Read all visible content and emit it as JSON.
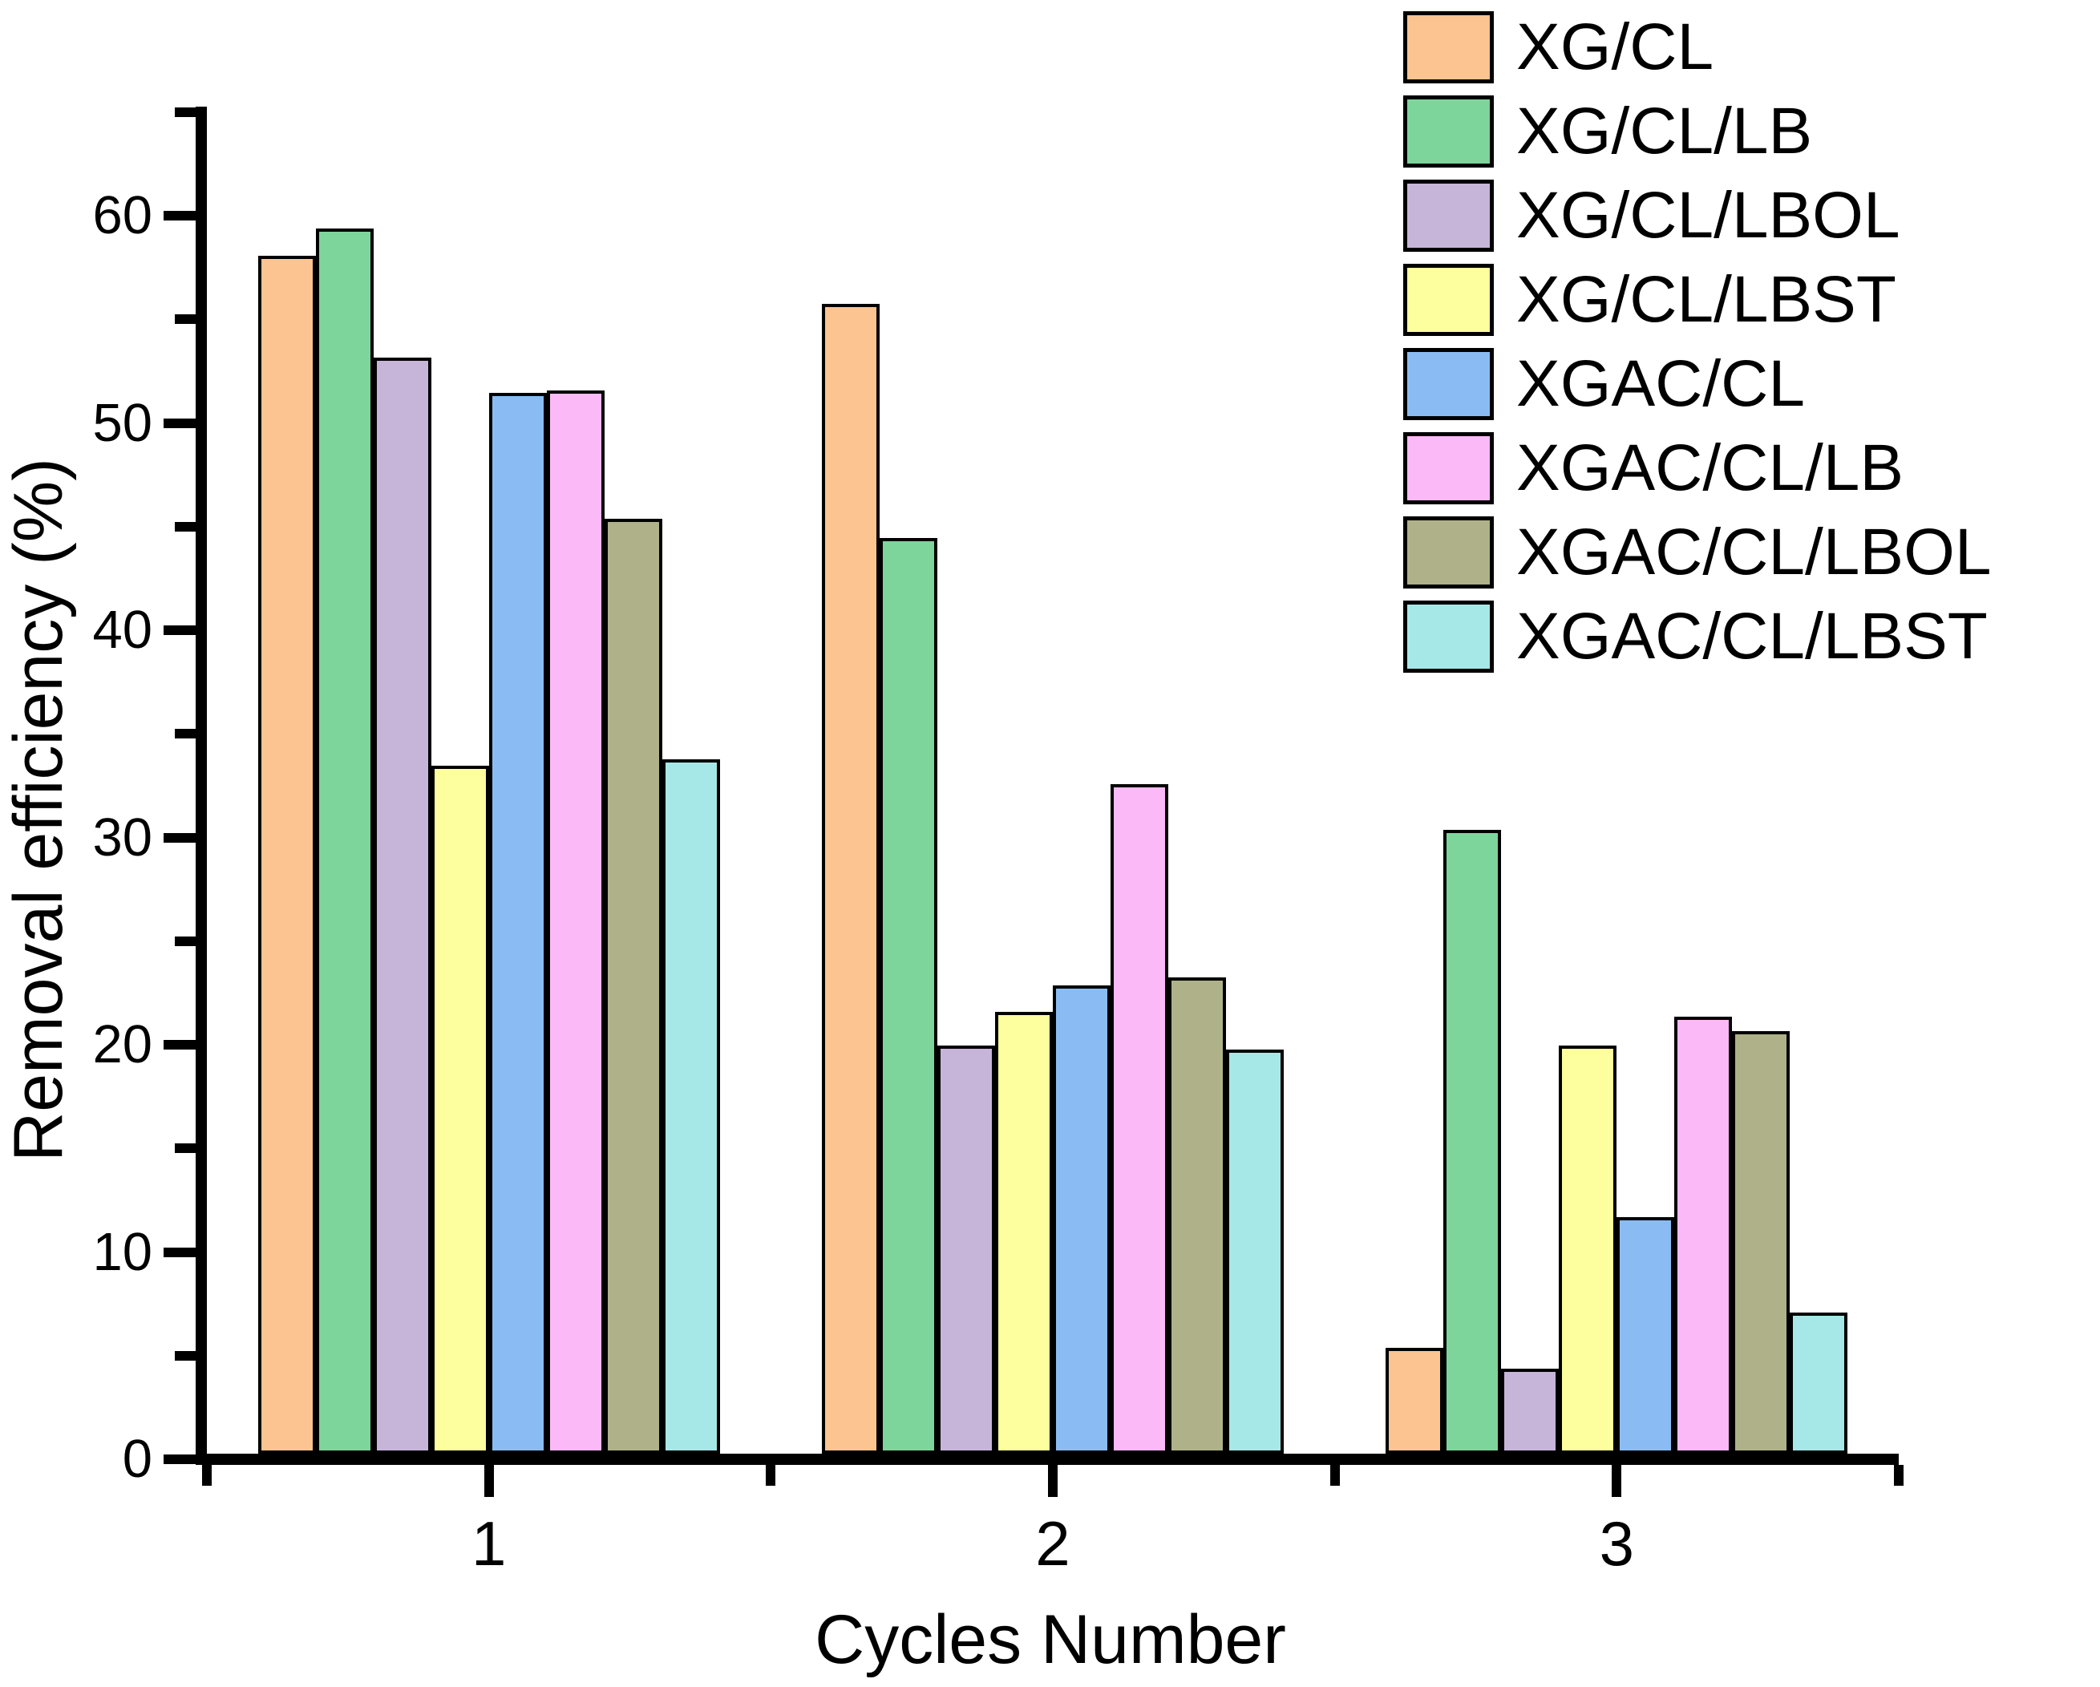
{
  "chart_data": {
    "type": "bar",
    "title": "",
    "xlabel": "Cycles Number",
    "ylabel": "Removal efficiency (%)",
    "categories": [
      "1",
      "2",
      "3"
    ],
    "series": [
      {
        "name": "XG/CL",
        "color": "#FCC490",
        "values": [
          57.8,
          55.5,
          5.1
        ]
      },
      {
        "name": "XG/CL/LB",
        "color": "#7DD59B",
        "values": [
          59.1,
          44.2,
          30.1
        ]
      },
      {
        "name": "XG/CL/LBOL",
        "color": "#C7B5D9",
        "values": [
          52.9,
          19.7,
          4.1
        ]
      },
      {
        "name": "XG/CL/LBST",
        "color": "#FDFE9E",
        "values": [
          33.2,
          21.3,
          19.7
        ]
      },
      {
        "name": "XGAC/CL",
        "color": "#8ABCF3",
        "values": [
          51.2,
          22.6,
          11.4
        ]
      },
      {
        "name": "XGAC/CL/LB",
        "color": "#FCB9F7",
        "values": [
          51.3,
          32.3,
          21.1
        ]
      },
      {
        "name": "XGAC/CL/LBOL",
        "color": "#AFB288",
        "values": [
          45.1,
          23.0,
          20.4
        ]
      },
      {
        "name": "XGAC/CL/LBST",
        "color": "#A6E8E7",
        "values": [
          33.5,
          19.5,
          6.8
        ]
      }
    ],
    "ylim": [
      0,
      65
    ],
    "y_major_ticks": [
      0,
      10,
      20,
      30,
      40,
      50,
      60
    ],
    "y_minor_ticks": [
      5,
      15,
      25,
      35,
      45,
      55,
      65
    ],
    "x_positions": [
      1,
      2,
      3
    ],
    "x_minor_positions": [
      0.5,
      1.5,
      2.5,
      3.5
    ],
    "legend_position": "top-right",
    "grid": false,
    "axis_color": "#000000",
    "background_color": "#ffffff"
  }
}
